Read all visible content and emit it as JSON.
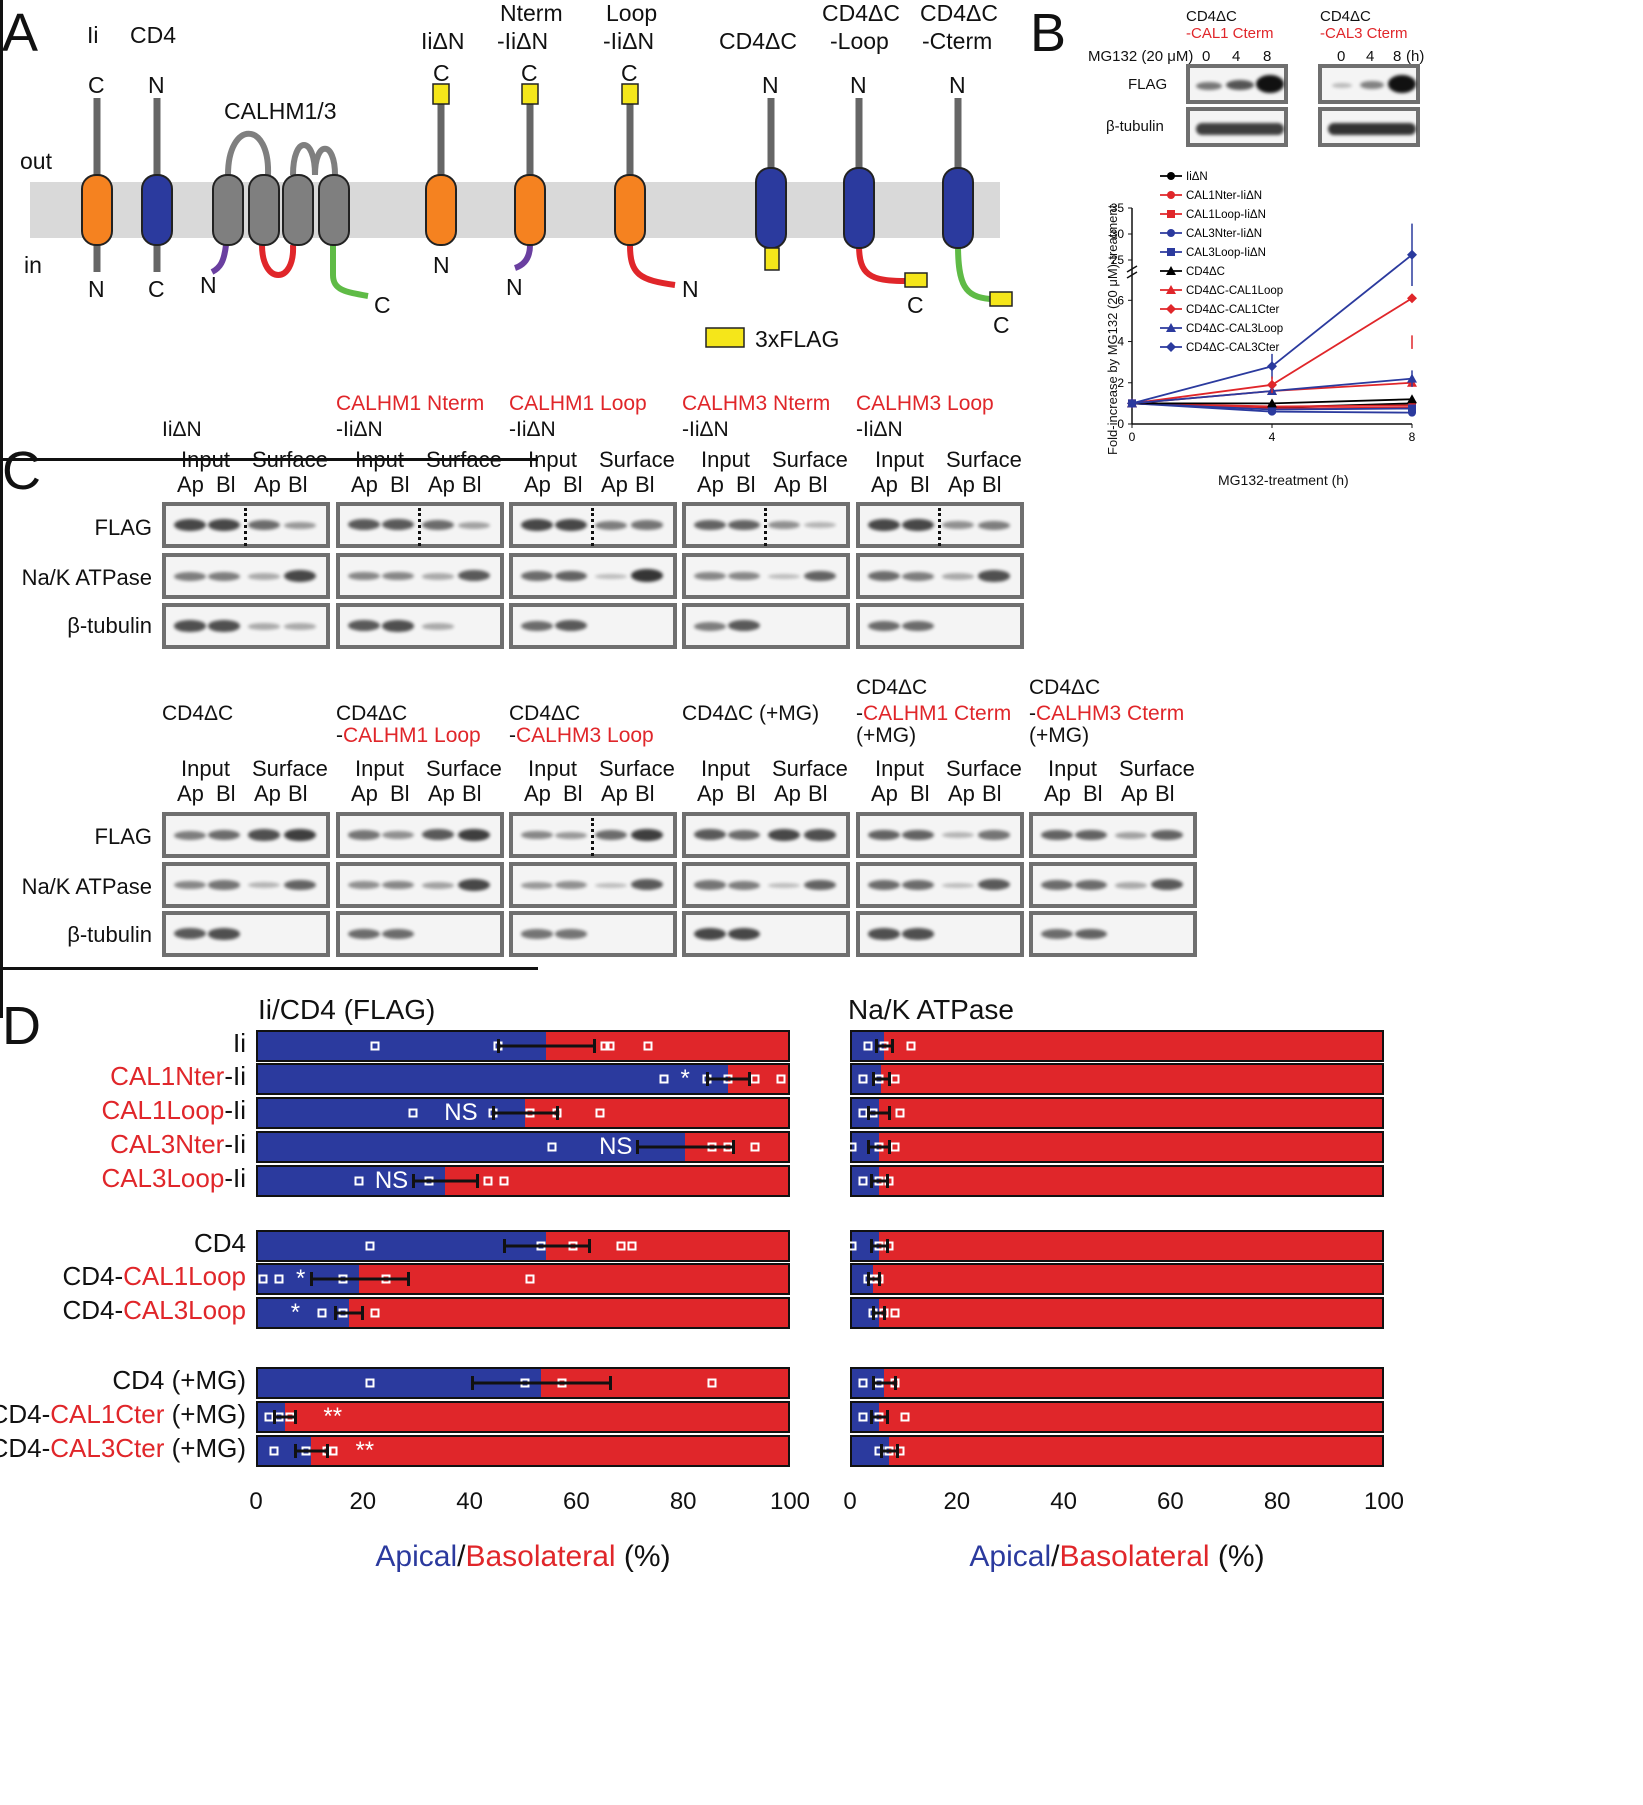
{
  "panels": {
    "a": "A",
    "b": "B",
    "c": "C",
    "d": "D"
  },
  "panelA": {
    "constructs": [
      "Ii",
      "CD4",
      "IiΔN",
      "Nterm",
      "-IiΔN",
      "Loop",
      "-IiΔN",
      "CD4ΔC",
      "CD4ΔC",
      "-Loop",
      "CD4ΔC",
      "-Cterm"
    ],
    "calhm": "CALHM1/3",
    "out": "out",
    "in": "in",
    "termini": {
      "C": "C",
      "N": "N"
    },
    "flag_legend": "3xFLAG",
    "colors": {
      "ii": "#f58220",
      "cd4": "#2b3a9e",
      "calhm": "#7f7f7f",
      "nterm": "#6a3fa0",
      "loop": "#e0262a",
      "cterm": "#5fbb46",
      "flag": "#f5e61a",
      "membrane": "#d9d9d9"
    }
  },
  "panelB": {
    "blot1_title1": "CD4ΔC",
    "blot1_title2": "-CAL1 Cterm",
    "blot2_title1": "CD4ΔC",
    "blot2_title2": "-CAL3 Cterm",
    "mg_label": "MG132 (20 μM)",
    "times": [
      "0",
      "4",
      "8"
    ],
    "time_unit": "(h)",
    "row_flag": "FLAG",
    "row_tubulin": "β-tubulin"
  },
  "chart_data": {
    "type": "line",
    "xlabel": "MG132-treatment (h)",
    "ylabel": "Fold-increase by MG132 (20 μM)-treatment",
    "x": [
      0,
      4,
      8
    ],
    "x_ticks": [
      "0",
      "4",
      "8"
    ],
    "y_ticks_low": [
      "0",
      "2",
      "4",
      "6"
    ],
    "y_ticks_high": [
      "25",
      "30",
      "35"
    ],
    "series": [
      {
        "name": "IiΔN",
        "color": "#000000",
        "marker": "circle",
        "values": [
          1,
          0.8,
          1.0
        ]
      },
      {
        "name": "CAL1Nter-IiΔN",
        "color": "#e0262a",
        "marker": "circle",
        "values": [
          1,
          0.85,
          0.9
        ]
      },
      {
        "name": "CAL1Loop-IiΔN",
        "color": "#e0262a",
        "marker": "square",
        "values": [
          1,
          0.75,
          0.8
        ]
      },
      {
        "name": "CAL3Nter-IiΔN",
        "color": "#2b3a9e",
        "marker": "circle",
        "values": [
          1,
          0.6,
          0.55
        ]
      },
      {
        "name": "CAL3Loop-IiΔN",
        "color": "#2b3a9e",
        "marker": "square",
        "values": [
          1,
          0.7,
          0.75
        ]
      },
      {
        "name": "CD4ΔC",
        "color": "#000000",
        "marker": "triangle",
        "values": [
          1,
          1.0,
          1.2
        ]
      },
      {
        "name": "CD4ΔC-CAL1Loop",
        "color": "#e0262a",
        "marker": "triangle",
        "values": [
          1,
          1.6,
          2.0
        ]
      },
      {
        "name": "CD4ΔC-CAL1Cter",
        "color": "#e0262a",
        "marker": "diamond",
        "values": [
          1,
          1.9,
          6.1
        ]
      },
      {
        "name": "CD4ΔC-CAL3Loop",
        "color": "#2b3a9e",
        "marker": "triangle",
        "values": [
          1,
          1.6,
          2.2
        ]
      },
      {
        "name": "CD4ΔC-CAL3Cter",
        "color": "#2b3a9e",
        "marker": "diamond",
        "values": [
          1,
          2.8,
          26
        ]
      }
    ]
  },
  "panelC": {
    "top": [
      {
        "t1": "",
        "t2": "IiΔN"
      },
      {
        "t1": "CALHM1 Nterm",
        "t2": "-IiΔN"
      },
      {
        "t1": "CALHM1 Loop",
        "t2": "-IiΔN"
      },
      {
        "t1": "CALHM3 Nterm",
        "t2": "-IiΔN"
      },
      {
        "t1": "CALHM3 Loop",
        "t2": "-IiΔN"
      }
    ],
    "bottom": [
      {
        "a": "CD4ΔC",
        "b": "",
        "c": ""
      },
      {
        "a": "CD4ΔC",
        "b": "-",
        "c": "CALHM1 Loop"
      },
      {
        "a": "CD4ΔC",
        "b": "-",
        "c": "CALHM3 Loop"
      },
      {
        "a": "CD4ΔC (+MG)",
        "b": "",
        "c": ""
      },
      {
        "a": "CD4ΔC",
        "b": "-",
        "c": "CALHM1 Cterm",
        "d": "(+MG)"
      },
      {
        "a": "CD4ΔC",
        "b": "-",
        "c": "CALHM3 Cterm",
        "d": "(+MG)"
      }
    ],
    "input": "Input",
    "surface": "Surface",
    "ap": "Ap",
    "bl": "Bl",
    "rows": [
      "FLAG",
      "Na/K ATPase",
      "β-tubulin"
    ]
  },
  "panelD": {
    "left_title": "Ii/CD4 (FLAG)",
    "right_title": "Na/K ATPase",
    "x_ticks": [
      "0",
      "20",
      "40",
      "60",
      "80",
      "100"
    ],
    "axis_apical": "Apical",
    "axis_sep": "/",
    "axis_basolateral": "Basolateral",
    "axis_unit": "(%)",
    "rows": [
      {
        "black": "Ii",
        "red": "",
        "suffix": "",
        "apical": 54,
        "err": 9,
        "pts": [
          22,
          45,
          65,
          66,
          73
        ],
        "sig": "",
        "sigx": 0,
        "nak": 6,
        "nak_err": 1.5,
        "nak_pts": [
          3,
          6,
          11
        ]
      },
      {
        "black": "",
        "red": "CAL1Nter",
        "suffix": "-Ii",
        "apical": 88,
        "err": 4,
        "pts": [
          76,
          84,
          88,
          93,
          98
        ],
        "sig": "*",
        "sigx": 80,
        "nak": 5.5,
        "nak_err": 1.5,
        "nak_pts": [
          2,
          5,
          8
        ]
      },
      {
        "black": "",
        "red": "CAL1Loop",
        "suffix": "-Ii",
        "apical": 50,
        "err": 6,
        "pts": [
          29,
          44,
          51,
          56,
          64
        ],
        "sig": "NS",
        "sigx": 38,
        "nak": 5,
        "nak_err": 2,
        "nak_pts": [
          2,
          4,
          9
        ]
      },
      {
        "black": "",
        "red": "CAL3Nter",
        "suffix": "-Ii",
        "apical": 80,
        "err": 9,
        "pts": [
          55,
          85,
          88,
          93
        ],
        "sig": "NS",
        "sigx": 67,
        "nak": 5,
        "nak_err": 2,
        "nak_pts": [
          0,
          5,
          8
        ]
      },
      {
        "black": "",
        "red": "CAL3Loop",
        "suffix": "-Ii",
        "apical": 35,
        "err": 6,
        "pts": [
          19,
          32,
          43,
          46
        ],
        "sig": "NS",
        "sigx": 25,
        "nak": 5,
        "nak_err": 1.5,
        "nak_pts": [
          2,
          5,
          7
        ]
      },
      {
        "black": "CD4",
        "red": "",
        "suffix": "",
        "apical": 54,
        "err": 8,
        "pts": [
          21,
          53,
          59,
          68,
          70
        ],
        "sig": "",
        "sigx": 0,
        "nak": 5,
        "nak_err": 1.5,
        "nak_pts": [
          0,
          5,
          7
        ]
      },
      {
        "black": "CD4-",
        "red": "CAL1Loop",
        "suffix": "",
        "apical": 19,
        "err": 9,
        "pts": [
          1,
          4,
          16,
          24,
          51
        ],
        "sig": "*",
        "sigx": 8,
        "nak": 4,
        "nak_err": 1,
        "nak_pts": [
          3,
          4,
          5
        ]
      },
      {
        "black": "CD4-",
        "red": "CAL3Loop",
        "suffix": "",
        "apical": 17,
        "err": 2.5,
        "pts": [
          12,
          16,
          22
        ],
        "sig": "*",
        "sigx": 7,
        "nak": 5,
        "nak_err": 1,
        "nak_pts": [
          4,
          6,
          8
        ]
      },
      {
        "black": "CD4 (+MG)",
        "red": "",
        "suffix": "",
        "apical": 53,
        "err": 13,
        "pts": [
          21,
          50,
          57,
          85
        ],
        "sig": "",
        "sigx": 0,
        "nak": 6,
        "nak_err": 2,
        "nak_pts": [
          2,
          5,
          8
        ]
      },
      {
        "black": "CD4-",
        "red": "CAL1Cter",
        "suffix": " (+MG)",
        "apical": 5,
        "err": 2,
        "pts": [
          2,
          4,
          6
        ],
        "sig": "**",
        "sigx": 14,
        "nak": 5,
        "nak_err": 1.5,
        "nak_pts": [
          2,
          5,
          10
        ]
      },
      {
        "black": "CD4-",
        "red": "CAL3Cter",
        "suffix": " (+MG)",
        "apical": 10,
        "err": 3,
        "pts": [
          3,
          9,
          13,
          14
        ],
        "sig": "**",
        "sigx": 20,
        "nak": 7,
        "nak_err": 1.5,
        "nak_pts": [
          5,
          7,
          9
        ]
      }
    ]
  }
}
